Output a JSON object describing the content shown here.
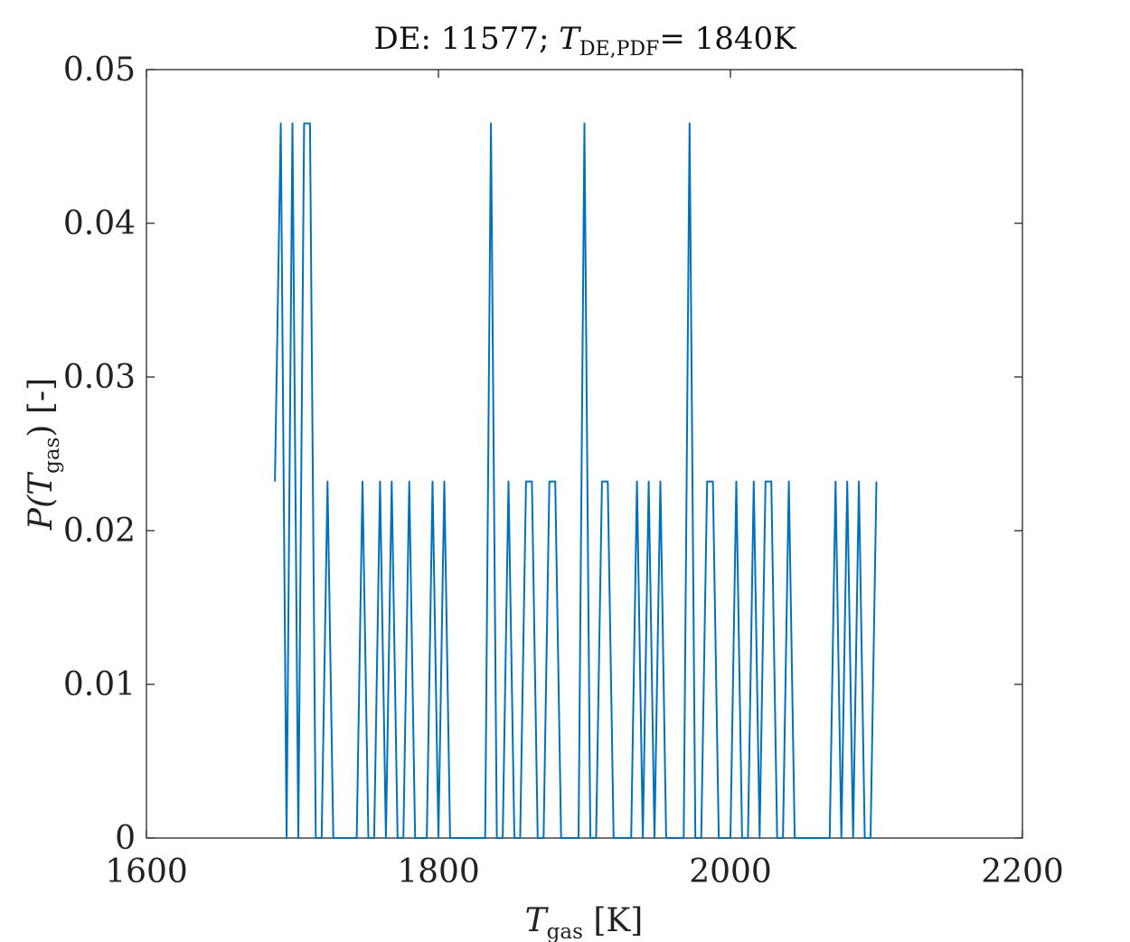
{
  "chart_data": {
    "type": "line",
    "title": {
      "prefix": "DE: 11577; ",
      "var": "T",
      "sub": "DE,PDF",
      "suffix": "= 1840K"
    },
    "xlabel": {
      "var": "T",
      "sub": "gas",
      "unit": " [K]"
    },
    "ylabel": {
      "func": "P(",
      "var": "T",
      "sub": "gas",
      "close": ") [-]"
    },
    "xlim": [
      1600,
      2200
    ],
    "ylim": [
      0,
      0.05
    ],
    "x_ticks": [
      "1600",
      "1800",
      "2000",
      "2200"
    ],
    "y_ticks": [
      "0",
      "0.01",
      "0.02",
      "0.03",
      "0.04",
      "0.05"
    ],
    "grid": false,
    "line_color": "#0072BD",
    "series": [
      {
        "x": [
          1688,
          1692,
          1696,
          1700,
          1704,
          1708,
          1712,
          1716,
          1720,
          1724,
          1728,
          1732,
          1736,
          1740,
          1744,
          1748,
          1752,
          1756,
          1760,
          1764,
          1768,
          1772,
          1776,
          1780,
          1784,
          1788,
          1792,
          1796,
          1800,
          1804,
          1808,
          1812,
          1816,
          1820,
          1824,
          1828,
          1832,
          1836,
          1840,
          1844,
          1848,
          1852,
          1856,
          1860,
          1864,
          1868,
          1872,
          1876,
          1880,
          1884,
          1888,
          1892,
          1896,
          1900,
          1904,
          1908,
          1912,
          1916,
          1920,
          1924,
          1928,
          1932,
          1936,
          1940,
          1944,
          1948,
          1952,
          1956,
          1960,
          1964,
          1968,
          1972,
          1976,
          1980,
          1984,
          1988,
          1992,
          1996,
          2000,
          2004,
          2008,
          2012,
          2016,
          2020,
          2024,
          2028,
          2032,
          2036,
          2040,
          2044,
          2048,
          2052,
          2056,
          2060,
          2064,
          2068,
          2072,
          2076,
          2080,
          2084,
          2088,
          2092,
          2096,
          2100
        ],
        "y": [
          0.0232,
          0.0465,
          0,
          0.0465,
          0,
          0.0465,
          0.0465,
          0,
          0,
          0.0232,
          0,
          0,
          0,
          0,
          0,
          0.0232,
          0,
          0,
          0.0232,
          0,
          0.0232,
          0,
          0,
          0.0232,
          0,
          0,
          0,
          0.0232,
          0,
          0.0232,
          0,
          0,
          0,
          0,
          0,
          0,
          0,
          0.0465,
          0,
          0,
          0.0232,
          0,
          0,
          0.0232,
          0.0232,
          0,
          0,
          0.0232,
          0.0232,
          0,
          0,
          0,
          0,
          0.0465,
          0,
          0,
          0.0232,
          0.0232,
          0,
          0,
          0,
          0,
          0.0232,
          0,
          0.0232,
          0,
          0.0232,
          0,
          0,
          0,
          0,
          0.0465,
          0,
          0,
          0.0232,
          0.0232,
          0,
          0,
          0,
          0.0232,
          0,
          0,
          0.0232,
          0,
          0.0232,
          0.0232,
          0,
          0,
          0.0232,
          0,
          0,
          0,
          0,
          0,
          0,
          0,
          0.0232,
          0,
          0.0232,
          0,
          0.0232,
          0,
          0,
          0.0232
        ]
      }
    ]
  }
}
